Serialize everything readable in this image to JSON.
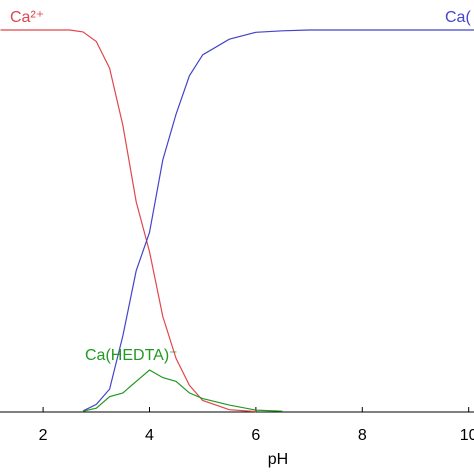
{
  "chart_data": {
    "type": "line",
    "xlabel": "pH",
    "x": [
      1.2,
      2,
      2.5,
      2.75,
      3,
      3.25,
      3.5,
      3.75,
      4,
      4.25,
      4.5,
      4.75,
      5,
      5.5,
      6,
      6.5,
      7,
      8,
      9,
      10.2
    ],
    "series": [
      {
        "name": "Ca²⁺",
        "color": "#e0474c",
        "values": [
          1,
          1,
          1,
          0.995,
          0.97,
          0.9,
          0.75,
          0.55,
          0.42,
          0.25,
          0.14,
          0.07,
          0.03,
          0.006,
          0.001,
          null,
          null,
          null,
          null,
          null
        ]
      },
      {
        "name": "Ca(",
        "color": "#4444cc",
        "values": [
          null,
          null,
          null,
          0.003,
          0.02,
          0.06,
          0.2,
          0.37,
          0.47,
          0.66,
          0.78,
          0.88,
          0.935,
          0.976,
          0.994,
          0.998,
          1,
          1,
          1,
          1
        ]
      },
      {
        "name": "Ca(HEDTA)⁻",
        "color": "#229922",
        "values": [
          null,
          null,
          null,
          0.002,
          0.01,
          0.04,
          0.05,
          0.08,
          0.11,
          0.09,
          0.08,
          0.05,
          0.035,
          0.018,
          0.005,
          0.002,
          null,
          null,
          null,
          null
        ]
      }
    ],
    "xlim": [
      1.19,
      10.1
    ],
    "ylim": [
      0,
      1
    ],
    "xticks": [
      2,
      4,
      6,
      8,
      10
    ]
  }
}
